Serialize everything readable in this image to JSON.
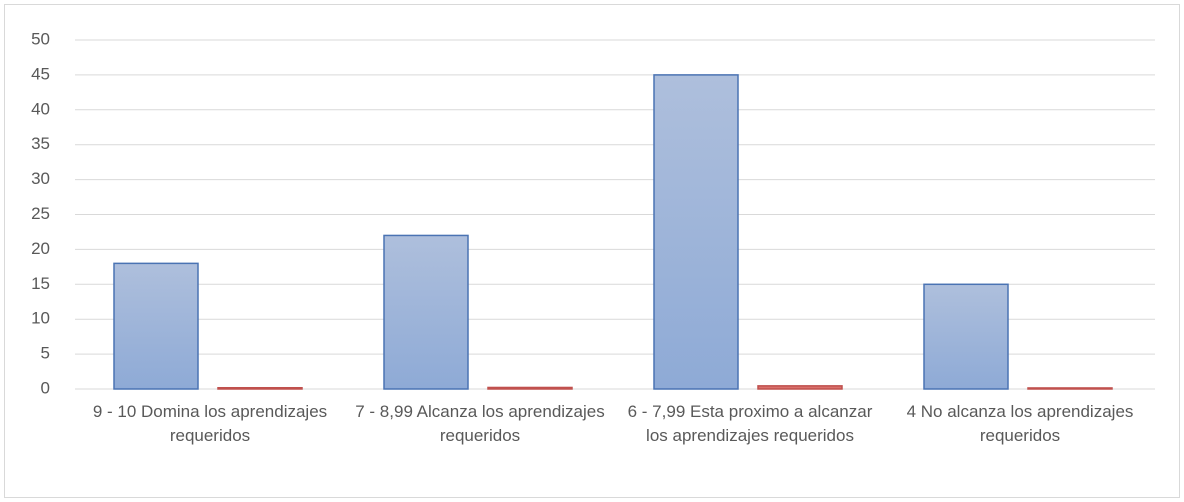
{
  "chart_data": {
    "type": "bar",
    "categories": [
      "9 - 10 Domina los aprendizajes requeridos",
      "7 - 8,99 Alcanza los aprendizajes requeridos",
      "6 - 7,99 Esta proximo a alcanzar los aprendizajes requeridos",
      "4 No alcanza los aprendizajes requeridos"
    ],
    "series": [
      {
        "color": "#8eaad6",
        "values": [
          18,
          22,
          45,
          15
        ]
      },
      {
        "color": "#d9706c",
        "values": [
          0.18,
          0.22,
          0.45,
          0.15
        ]
      }
    ],
    "ylim": [
      0,
      50
    ],
    "yticks": [
      0,
      5,
      10,
      15,
      20,
      25,
      30,
      35,
      40,
      45,
      50
    ],
    "grid": true
  }
}
